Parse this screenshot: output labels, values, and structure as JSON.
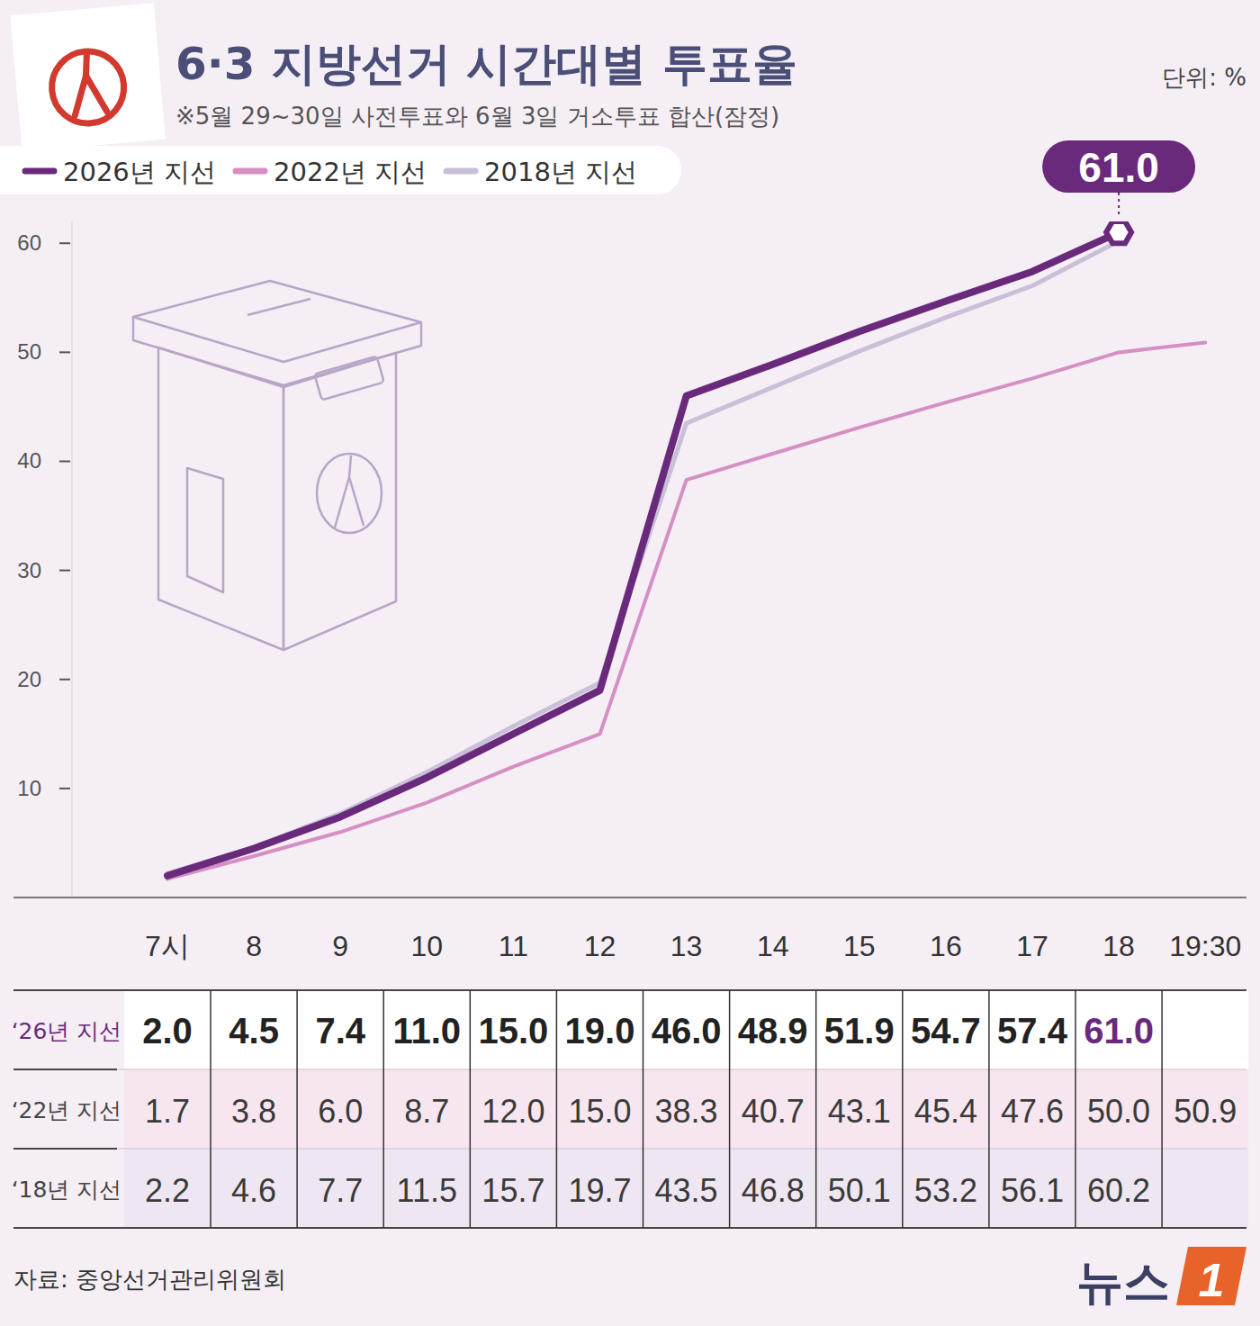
{
  "chart_data": {
    "type": "line",
    "title": "6·3 지방선거 시간대별 투표율",
    "subtitle": "※5월 29~30일 사전투표와 6월 3일 거소투표 합산(잠정)",
    "unit": "단위: %",
    "source": "자료: 중앙선거관리위원회",
    "logo": {
      "text": "뉴스",
      "mark": "1"
    },
    "categories": [
      "7시",
      "8",
      "9",
      "10",
      "11",
      "12",
      "13",
      "14",
      "15",
      "16",
      "17",
      "18",
      "19:30"
    ],
    "series": [
      {
        "name": "2026년 지선",
        "table_label": "‘26년 지선",
        "color": "#6a2a7c",
        "marker": "hexagon",
        "values": [
          2,
          4.5,
          7.4,
          11,
          15,
          19,
          46,
          48.9,
          51.9,
          54.7,
          57.4,
          61,
          null
        ],
        "value_labels": [
          "2.0",
          "4.5",
          "7.4",
          "11.0",
          "15.0",
          "19.0",
          "46.0",
          "48.9",
          "51.9",
          "54.7",
          "57.4",
          "61.0",
          null
        ]
      },
      {
        "name": "2022년 지선",
        "table_label": "‘22년 지선",
        "color": "#d58fc2",
        "values": [
          1.7,
          3.8,
          6,
          8.7,
          12,
          15,
          38.3,
          40.7,
          43.1,
          45.4,
          47.6,
          50,
          50.9
        ],
        "value_labels": [
          "1.7",
          "3.8",
          "6.0",
          "8.7",
          "12.0",
          "15.0",
          "38.3",
          "40.7",
          "43.1",
          "45.4",
          "47.6",
          "50.0",
          "50.9"
        ]
      },
      {
        "name": "2018년 지선",
        "table_label": "‘18년 지선",
        "color": "#c9c0d8",
        "values": [
          2.2,
          4.6,
          7.7,
          11.5,
          15.7,
          19.7,
          43.5,
          46.8,
          50.1,
          53.2,
          56.1,
          60.2,
          null
        ],
        "value_labels": [
          "2.2",
          "4.6",
          "7.7",
          "11.5",
          "15.7",
          "19.7",
          "43.5",
          "46.8",
          "50.1",
          "53.2",
          "56.1",
          "60.2",
          null
        ]
      }
    ],
    "ylim": [
      0,
      62
    ],
    "yticks": [
      10,
      20,
      30,
      40,
      50,
      60
    ],
    "grid": false,
    "legend": "top-left"
  }
}
